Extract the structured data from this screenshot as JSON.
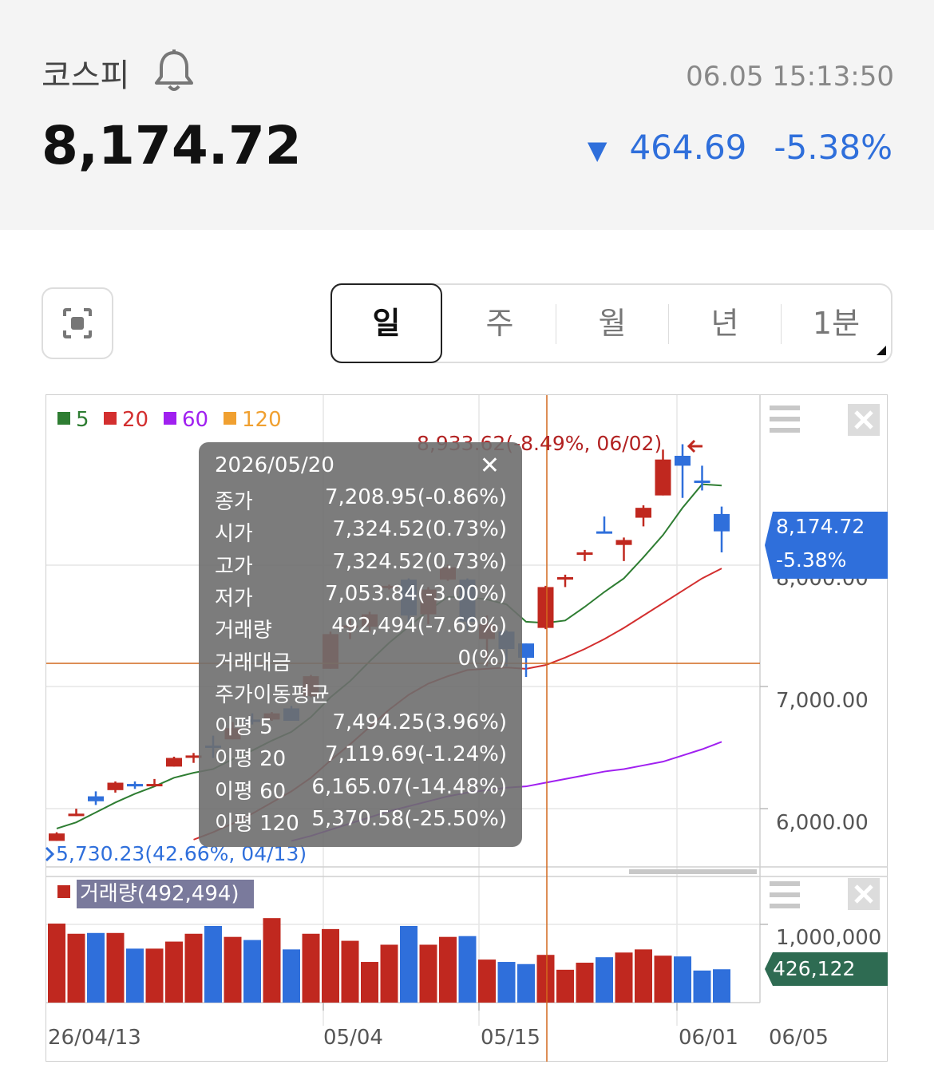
{
  "header": {
    "index_name": "코스피",
    "timestamp": "06.05 15:13:50",
    "price": "8,174.72",
    "change_arrow": "▼",
    "change_value": "464.69",
    "change_pct": "-5.38%",
    "down_color": "#2f6fdb",
    "up_color": "#c0281f"
  },
  "tabs": [
    {
      "label": "일",
      "active": true
    },
    {
      "label": "주",
      "active": false
    },
    {
      "label": "월",
      "active": false
    },
    {
      "label": "년",
      "active": false
    },
    {
      "label": "1분",
      "active": false
    }
  ],
  "legend": [
    {
      "label": "5",
      "color": "#2e7d32"
    },
    {
      "label": "20",
      "color": "#d32f2f"
    },
    {
      "label": "60",
      "color": "#a020f0"
    },
    {
      "label": "120",
      "color": "#f0a030"
    }
  ],
  "annotations": {
    "high": "8,933.62(-8.49%, 06/02)",
    "low": "5,730.23(42.66%, 04/13)"
  },
  "price_tag": {
    "value": "8,174.72",
    "pct": "-5.38%"
  },
  "volume_tag": "426,122",
  "volume_label": "거래량(492,494)",
  "tooltip": {
    "date": "2026/05/20",
    "rows": [
      {
        "k": "종가",
        "v": "7,208.95(-0.86%)"
      },
      {
        "k": "시가",
        "v": "7,324.52(0.73%)"
      },
      {
        "k": "고가",
        "v": "7,324.52(0.73%)"
      },
      {
        "k": "저가",
        "v": "7,053.84(-3.00%)"
      },
      {
        "k": "거래량",
        "v": "492,494(-7.69%)"
      },
      {
        "k": "거래대금",
        "v": "0(%)"
      },
      {
        "k": "주가이동평균",
        "v": ""
      },
      {
        "k": "이평 5",
        "v": "7,494.25(3.96%)"
      },
      {
        "k": "이평 20",
        "v": "7,119.69(-1.24%)"
      },
      {
        "k": "이평 60",
        "v": "6,165.07(-14.48%)"
      },
      {
        "k": "이평 120",
        "v": "5,370.58(-25.50%)"
      }
    ]
  },
  "chart_data": {
    "type": "candlestick",
    "y_ticks": [
      "7,000.00",
      "6,000.00"
    ],
    "y_tick_values": [
      7000,
      6000
    ],
    "vol_tick": "1,000,000",
    "vol_tick_value": 1000000,
    "x_ticks": [
      "26/04/13",
      "05/04",
      "05/15",
      "06/01",
      "06/05"
    ],
    "candles": [
      {
        "o": 5730,
        "c": 5790,
        "h": 5800,
        "l": 5730,
        "v": 1010000
      },
      {
        "o": 5930,
        "c": 5950,
        "h": 5990,
        "l": 5930,
        "v": 880000
      },
      {
        "o": 6090,
        "c": 6050,
        "h": 6130,
        "l": 6020,
        "v": 890000
      },
      {
        "o": 6140,
        "c": 6200,
        "h": 6210,
        "l": 6120,
        "v": 890000
      },
      {
        "o": 6190,
        "c": 6170,
        "h": 6210,
        "l": 6150,
        "v": 690000
      },
      {
        "o": 6180,
        "c": 6190,
        "h": 6230,
        "l": 6170,
        "v": 690000
      },
      {
        "o": 6330,
        "c": 6400,
        "h": 6410,
        "l": 6330,
        "v": 780000
      },
      {
        "o": 6410,
        "c": 6420,
        "h": 6440,
        "l": 6360,
        "v": 880000
      },
      {
        "o": 6500,
        "c": 6490,
        "h": 6580,
        "l": 6400,
        "v": 980000
      },
      {
        "o": 6550,
        "c": 6640,
        "h": 6690,
        "l": 6550,
        "v": 840000
      },
      {
        "o": 6710,
        "c": 6700,
        "h": 6760,
        "l": 6670,
        "v": 800000
      },
      {
        "o": 6710,
        "c": 6760,
        "h": 6770,
        "l": 6700,
        "v": 1080000
      },
      {
        "o": 6800,
        "c": 6700,
        "h": 6820,
        "l": 6700,
        "v": 680000
      },
      {
        "o": 6900,
        "c": 7060,
        "h": 7070,
        "l": 6890,
        "v": 880000
      },
      {
        "o": 7120,
        "c": 7400,
        "h": 7420,
        "l": 7120,
        "v": 940000
      },
      {
        "o": 7470,
        "c": 7470,
        "h": 7520,
        "l": 7360,
        "v": 790000
      },
      {
        "o": 7460,
        "c": 7560,
        "h": 7580,
        "l": 7420,
        "v": 520000
      },
      {
        "o": 7780,
        "c": 7790,
        "h": 7800,
        "l": 7760,
        "v": 740000
      },
      {
        "o": 7840,
        "c": 7550,
        "h": 7850,
        "l": 7480,
        "v": 980000
      },
      {
        "o": 7560,
        "c": 7760,
        "h": 7780,
        "l": 7480,
        "v": 740000
      },
      {
        "o": 7840,
        "c": 7940,
        "h": 7960,
        "l": 7830,
        "v": 840000
      },
      {
        "o": 7840,
        "c": 7500,
        "h": 7850,
        "l": 7430,
        "v": 850000
      },
      {
        "o": 7360,
        "c": 7480,
        "h": 7550,
        "l": 7140,
        "v": 550000
      },
      {
        "o": 7420,
        "c": 7280,
        "h": 7430,
        "l": 7140,
        "v": 520000
      },
      {
        "o": 7324.52,
        "c": 7208.95,
        "h": 7324.52,
        "l": 7053.84,
        "v": 492494
      },
      {
        "o": 7450,
        "c": 7780,
        "h": 7790,
        "l": 7440,
        "v": 610000
      },
      {
        "o": 7840,
        "c": 7860,
        "h": 7880,
        "l": 7780,
        "v": 420000
      },
      {
        "o": 8040,
        "c": 8060,
        "h": 8080,
        "l": 7990,
        "v": 510000
      },
      {
        "o": 8230,
        "c": 8220,
        "h": 8350,
        "l": 8220,
        "v": 580000
      },
      {
        "o": 8120,
        "c": 8160,
        "h": 8180,
        "l": 7990,
        "v": 640000
      },
      {
        "o": 8340,
        "c": 8420,
        "h": 8440,
        "l": 8270,
        "v": 680000
      },
      {
        "o": 8520,
        "c": 8810,
        "h": 8890,
        "l": 8520,
        "v": 600000
      },
      {
        "o": 8840,
        "c": 8760,
        "h": 8933.62,
        "l": 8500,
        "v": 590000
      },
      {
        "o": 8640,
        "c": 8630,
        "h": 8760,
        "l": 8560,
        "v": 410000
      },
      {
        "o": 8370,
        "c": 8230,
        "h": 8430,
        "l": 8060,
        "v": 426122
      }
    ],
    "ma5": [
      5830,
      5880,
      5960,
      6040,
      6110,
      6170,
      6240,
      6280,
      6310,
      6390,
      6460,
      6540,
      6610,
      6730,
      6890,
      7020,
      7180,
      7330,
      7460,
      7590,
      7700,
      7700,
      7680,
      7640,
      7500,
      7490,
      7510,
      7620,
      7740,
      7850,
      8020,
      8200,
      8420,
      8610,
      8600
    ],
    "ma20": [
      null,
      null,
      null,
      null,
      null,
      null,
      null,
      5740,
      5800,
      5870,
      5950,
      6040,
      6130,
      6240,
      6380,
      6510,
      6650,
      6790,
      6910,
      7000,
      7060,
      7110,
      7120,
      7130,
      7120,
      7150,
      7210,
      7280,
      7360,
      7450,
      7550,
      7650,
      7750,
      7850,
      7930
    ],
    "ma60": [
      null,
      null,
      null,
      null,
      null,
      null,
      null,
      null,
      null,
      null,
      null,
      null,
      5730,
      5770,
      5820,
      5870,
      5920,
      5970,
      6010,
      6050,
      6090,
      6120,
      6140,
      6160,
      6170,
      6200,
      6230,
      6260,
      6290,
      6310,
      6340,
      6370,
      6420,
      6470,
      6530
    ],
    "y_min": 5520,
    "y_max": 9330
  }
}
